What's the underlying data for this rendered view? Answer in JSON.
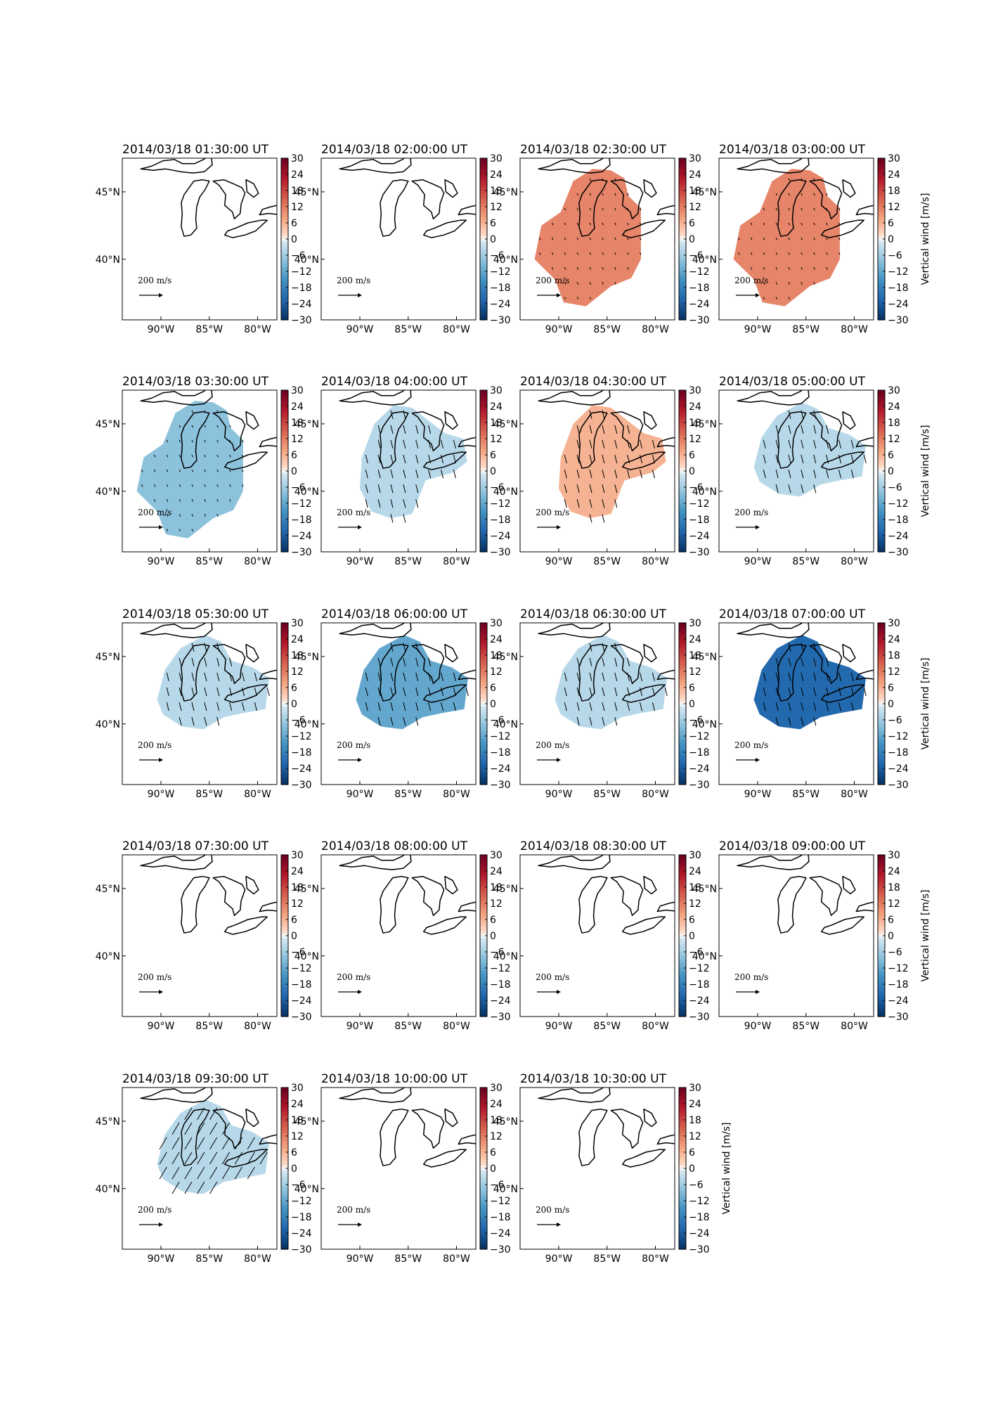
{
  "figure": {
    "colorbar": {
      "label": "Vertical wind [m/s]",
      "ticks": [
        "30",
        "24",
        "18",
        "12",
        "6",
        "0",
        "−6",
        "−12",
        "−18",
        "−24",
        "−30"
      ],
      "range": [
        -30,
        30
      ],
      "colormap": "RdBu_r"
    },
    "longitude_ticks": [
      "90°W",
      "85°W",
      "80°W"
    ],
    "latitude_ticks": [
      "45°N",
      "40°N"
    ],
    "vector_scale": {
      "value": "200",
      "unit_num": "m",
      "unit_den": "s"
    }
  },
  "chart_data": {
    "type": "heatmap",
    "colorbar_label": "Vertical wind [m/s]",
    "colorbar_range": [
      -30,
      30
    ],
    "xlabel": "",
    "ylabel": "",
    "panels": [
      {
        "title": "2014/03/18 01:30:00 UT",
        "vertical_wind": null,
        "coverage": "none",
        "arrows": "none"
      },
      {
        "title": "2014/03/18 02:00:00 UT",
        "vertical_wind": null,
        "coverage": "none",
        "arrows": "none"
      },
      {
        "title": "2014/03/18 02:30:00 UT",
        "vertical_wind": 11,
        "coverage": "large",
        "arrows": "short"
      },
      {
        "title": "2014/03/18 03:00:00 UT",
        "vertical_wind": 11,
        "coverage": "large",
        "arrows": "short"
      },
      {
        "title": "2014/03/18 03:30:00 UT",
        "vertical_wind": -8,
        "coverage": "large",
        "arrows": "short"
      },
      {
        "title": "2014/03/18 04:00:00 UT",
        "vertical_wind": -4,
        "coverage": "medium",
        "arrows": "medium"
      },
      {
        "title": "2014/03/18 04:30:00 UT",
        "vertical_wind": 6,
        "coverage": "medium",
        "arrows": "medium"
      },
      {
        "title": "2014/03/18 05:00:00 UT",
        "vertical_wind": -4,
        "coverage": "small",
        "arrows": "medium"
      },
      {
        "title": "2014/03/18 05:30:00 UT",
        "vertical_wind": -4,
        "coverage": "small",
        "arrows": "medium"
      },
      {
        "title": "2014/03/18 06:00:00 UT",
        "vertical_wind": -12,
        "coverage": "small",
        "arrows": "medium"
      },
      {
        "title": "2014/03/18 06:30:00 UT",
        "vertical_wind": -4,
        "coverage": "small",
        "arrows": "medium"
      },
      {
        "title": "2014/03/18 07:00:00 UT",
        "vertical_wind": -22,
        "coverage": "small",
        "arrows": "medium"
      },
      {
        "title": "2014/03/18 07:30:00 UT",
        "vertical_wind": null,
        "coverage": "none",
        "arrows": "none"
      },
      {
        "title": "2014/03/18 08:00:00 UT",
        "vertical_wind": null,
        "coverage": "none",
        "arrows": "none"
      },
      {
        "title": "2014/03/18 08:30:00 UT",
        "vertical_wind": null,
        "coverage": "none",
        "arrows": "none"
      },
      {
        "title": "2014/03/18 09:00:00 UT",
        "vertical_wind": null,
        "coverage": "none",
        "arrows": "none"
      },
      {
        "title": "2014/03/18 09:30:00 UT",
        "vertical_wind": -4,
        "coverage": "small",
        "arrows": "long"
      },
      {
        "title": "2014/03/18 10:00:00 UT",
        "vertical_wind": null,
        "coverage": "none",
        "arrows": "none"
      },
      {
        "title": "2014/03/18 10:30:00 UT",
        "vertical_wind": null,
        "coverage": "none",
        "arrows": "none"
      }
    ]
  }
}
